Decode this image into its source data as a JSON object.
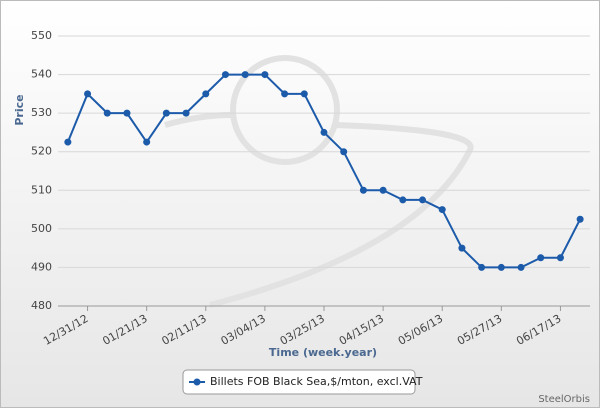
{
  "chart_data": {
    "type": "line",
    "x_label": "Time (week.year)",
    "y_label": "Price",
    "credit": "SteelOrbis",
    "categories": [
      null,
      "12/31/12",
      null,
      null,
      "01/21/13",
      null,
      null,
      "02/11/13",
      null,
      null,
      "03/04/13",
      null,
      null,
      "03/25/13",
      null,
      null,
      "04/15/13",
      null,
      null,
      "05/06/13",
      null,
      null,
      "05/27/13",
      null,
      null,
      "06/17/13",
      null
    ],
    "series": [
      {
        "name": "Billets FOB Black Sea,$/mton, excl.VAT",
        "color": "#1c5aaa",
        "values": [
          522.5,
          535,
          530,
          530,
          522.5,
          530,
          530,
          535,
          540,
          540,
          540,
          535,
          535,
          525,
          520,
          510,
          510,
          507.5,
          507.5,
          505,
          495,
          490,
          490,
          490,
          492.5,
          492.5,
          502.5
        ]
      }
    ],
    "ylim": [
      480,
      550
    ],
    "yticks": [
      480,
      490,
      500,
      510,
      520,
      530,
      540,
      550
    ],
    "grid": true,
    "legend": "bottom"
  }
}
